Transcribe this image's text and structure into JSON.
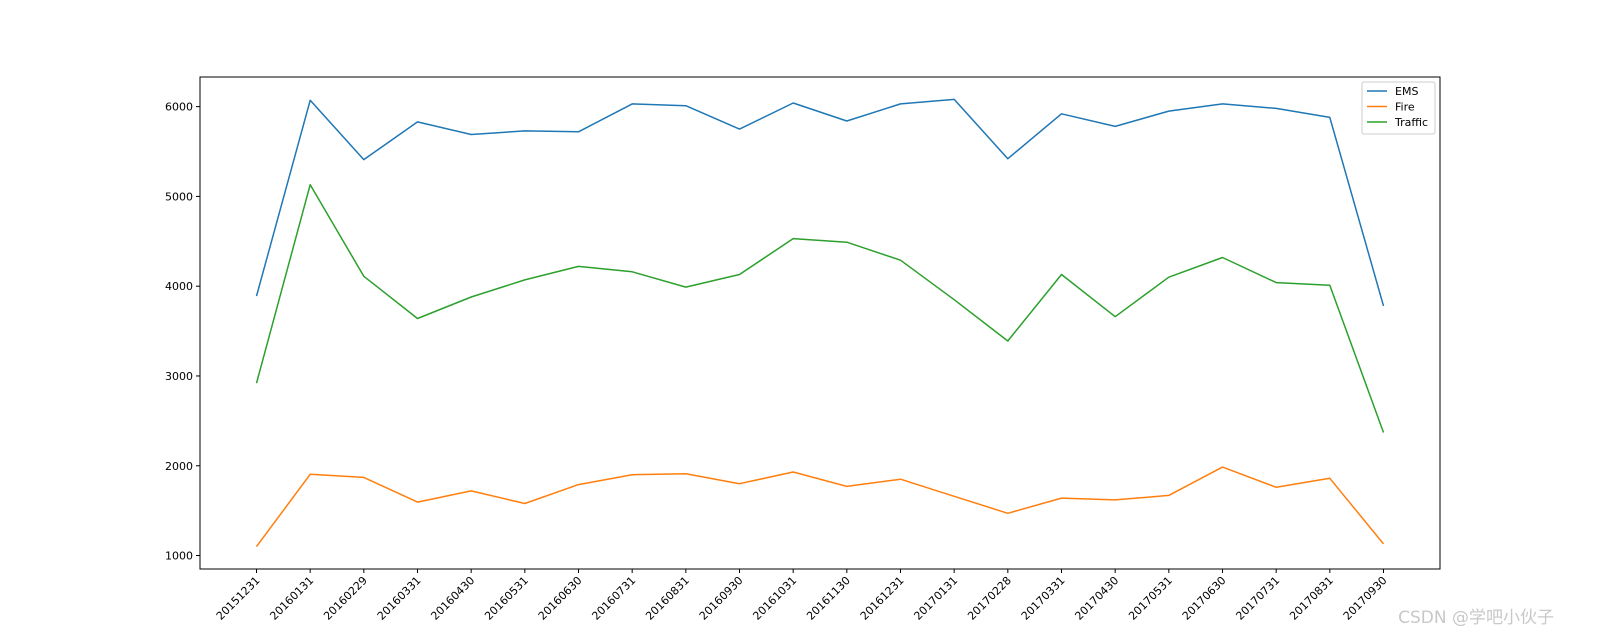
{
  "chart_data": {
    "type": "line",
    "title": "",
    "xlabel": "",
    "ylabel": "",
    "categories": [
      "20151231",
      "20160131",
      "20160229",
      "20160331",
      "20160430",
      "20160531",
      "20160630",
      "20160731",
      "20160831",
      "20160930",
      "20161031",
      "20161130",
      "20161231",
      "20170131",
      "20170228",
      "20170331",
      "20170430",
      "20170531",
      "20170630",
      "20170731",
      "20170831",
      "20170930"
    ],
    "series": [
      {
        "name": "EMS",
        "color": "#1f77b4",
        "values": [
          3890,
          6070,
          5410,
          5830,
          5690,
          5730,
          5720,
          6030,
          6010,
          5750,
          6040,
          5840,
          6030,
          6080,
          5420,
          5920,
          5780,
          5950,
          6030,
          5980,
          5880,
          3780
        ]
      },
      {
        "name": "Fire",
        "color": "#ff7f0e",
        "values": [
          1100,
          1905,
          1870,
          1595,
          1720,
          1580,
          1790,
          1900,
          1910,
          1800,
          1930,
          1770,
          1850,
          1660,
          1470,
          1640,
          1620,
          1670,
          1985,
          1760,
          1860,
          1130
        ]
      },
      {
        "name": "Traffic",
        "color": "#2ca02c",
        "values": [
          2920,
          5130,
          4110,
          3640,
          3880,
          4070,
          4220,
          4160,
          3990,
          4130,
          4530,
          4490,
          4290,
          3850,
          3390,
          4130,
          3660,
          4100,
          4320,
          4040,
          4010,
          2370
        ]
      }
    ],
    "yticks": [
      "1000",
      "2000",
      "3000",
      "4000",
      "5000",
      "6000"
    ],
    "ylim": [
      850,
      6330
    ],
    "grid": false,
    "legend_position": "top-right"
  },
  "watermark": "CSDN @学吧小伙子"
}
